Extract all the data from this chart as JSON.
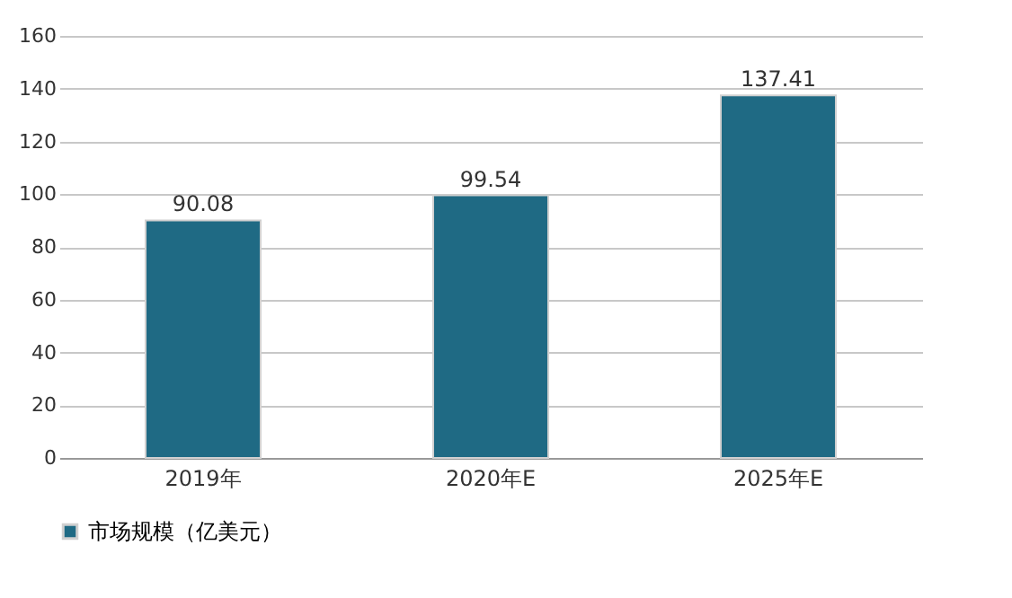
{
  "chart_data": {
    "type": "bar",
    "categories": [
      "2019年",
      "2020年E",
      "2025年E"
    ],
    "series": [
      {
        "name": "市场规模（亿美元）",
        "color": "#1f6a84",
        "values": [
          90.08,
          99.54,
          137.41
        ]
      }
    ],
    "ylim": [
      0,
      160
    ],
    "yticks": [
      0,
      20,
      40,
      60,
      80,
      100,
      120,
      140,
      160
    ],
    "grid": "y",
    "legend": "bottom",
    "data_labels": true
  }
}
